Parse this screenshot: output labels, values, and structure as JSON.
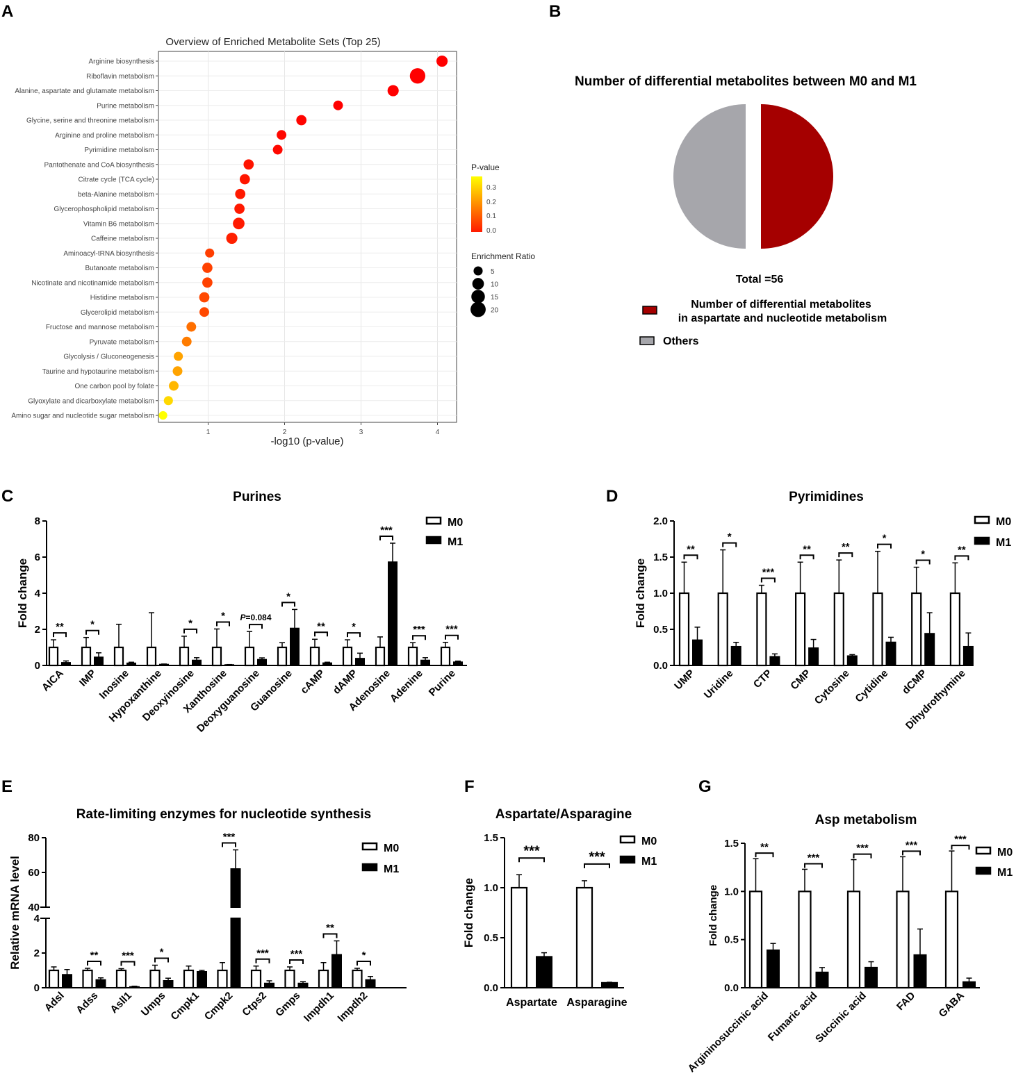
{
  "panel_labels": {
    "a": "A",
    "b": "B",
    "c": "C",
    "d": "D",
    "e": "E",
    "f": "F",
    "g": "G"
  },
  "chart_data": [
    {
      "id": "A",
      "type": "scatter",
      "title": "Overview of Enriched Metabolite Sets (Top 25)",
      "xlabel": "-log10 (p-value)",
      "xlim": [
        0.35,
        4.25
      ],
      "xticks": [
        1,
        2,
        3,
        4
      ],
      "grid": true,
      "categories": [
        "Arginine biosynthesis",
        "Riboflavin metabolism",
        "Alanine, aspartate and glutamate metabolism",
        "Purine metabolism",
        "Glycine, serine and threonine metabolism",
        "Arginine and proline metabolism",
        "Pyrimidine metabolism",
        "Pantothenate and CoA biosynthesis",
        "Citrate cycle (TCA cycle)",
        "beta-Alanine metabolism",
        "Glycerophospholipid metabolism",
        "Vitamin B6 metabolism",
        "Caffeine metabolism",
        "Aminoacyl-tRNA biosynthesis",
        "Butanoate metabolism",
        "Nicotinate and nicotinamide metabolism",
        "Histidine metabolism",
        "Glycerolipid metabolism",
        "Fructose and mannose metabolism",
        "Pyruvate metabolism",
        "Glycolysis / Gluconeogenesis",
        "Taurine and hypotaurine metabolism",
        "One carbon pool by folate",
        "Glyoxylate and dicarboxylate metabolism",
        "Amino sugar and nucleotide sugar metabolism"
      ],
      "x": [
        4.06,
        3.74,
        3.42,
        2.7,
        2.22,
        1.96,
        1.91,
        1.53,
        1.48,
        1.42,
        1.41,
        1.4,
        1.31,
        1.02,
        0.99,
        0.99,
        0.95,
        0.95,
        0.78,
        0.72,
        0.61,
        0.6,
        0.55,
        0.48,
        0.41
      ],
      "p_value": [
        0.0001,
        0.0002,
        0.0004,
        0.002,
        0.006,
        0.011,
        0.012,
        0.03,
        0.033,
        0.038,
        0.039,
        0.04,
        0.049,
        0.095,
        0.1,
        0.1,
        0.11,
        0.11,
        0.17,
        0.19,
        0.25,
        0.25,
        0.28,
        0.33,
        0.39
      ],
      "enrichment_ratio": [
        9,
        21,
        9,
        6,
        7,
        6,
        6,
        7,
        7,
        7,
        7,
        10,
        9,
        5,
        7,
        7,
        7,
        6,
        6,
        6,
        5,
        6,
        6,
        5,
        4
      ],
      "legend": {
        "color_title": "P-value",
        "color_ticks": [
          "0.3",
          "0.2",
          "0.1",
          "0.0"
        ],
        "size_title": "Enrichment Ratio",
        "size_ticks": [
          "5",
          "10",
          "15",
          "20"
        ]
      },
      "colors": {
        "low": "#ff0000",
        "mid": "#ff8c00",
        "high": "#ffff00"
      }
    },
    {
      "id": "B",
      "type": "pie",
      "title": "Number of differential metabolites between M0 and M1",
      "total_label": "Total =56",
      "slices": [
        {
          "name": "Number of differential metabolites in aspartate and  nucleotide metabolism",
          "legend_line1": "Number of differential metabolites",
          "legend_line2": "in aspartate and  nucleotide metabolism",
          "value": 28,
          "color": "#a50000"
        },
        {
          "name": "Others",
          "value": 28,
          "color": "#a6a6ab"
        }
      ]
    },
    {
      "id": "C",
      "type": "bar",
      "title": "Purines",
      "ylabel": "Fold change",
      "ylim": [
        0,
        8
      ],
      "yticks": [
        0,
        2,
        4,
        6,
        8
      ],
      "categories": [
        "AICA",
        "IMP",
        "Inosine",
        "Hypoxanthine",
        "Deoxyinosine",
        "Xanthosine",
        "Deoxyguanosine",
        "Guanosine",
        "cAMP",
        "dAMP",
        "Adenosine",
        "Adenine",
        "Purine"
      ],
      "series": [
        {
          "name": "M0",
          "values": [
            1,
            1,
            1,
            1,
            1,
            1,
            1,
            1,
            1,
            1,
            1,
            1,
            1
          ],
          "errors": [
            0.42,
            0.55,
            1.28,
            1.92,
            0.62,
            1.02,
            0.88,
            0.26,
            0.45,
            0.42,
            0.58,
            0.26,
            0.28
          ]
        },
        {
          "name": "M1",
          "values": [
            0.15,
            0.45,
            0.12,
            0.05,
            0.28,
            0.03,
            0.32,
            2.05,
            0.13,
            0.38,
            5.72,
            0.28,
            0.18
          ],
          "errors": [
            0.1,
            0.25,
            0.06,
            0.03,
            0.15,
            0.02,
            0.1,
            1.05,
            0.05,
            0.3,
            1.05,
            0.15,
            0.06
          ]
        }
      ],
      "significance": [
        "**",
        "*",
        "",
        "",
        "*",
        "*",
        "P=0.084",
        "*",
        "**",
        "*",
        "***",
        "***",
        "***"
      ]
    },
    {
      "id": "D",
      "type": "bar",
      "title": "Pyrimidines",
      "ylabel": "Fold change",
      "ylim": [
        0,
        2.0
      ],
      "yticks": [
        "0.0",
        "0.5",
        "1.0",
        "1.5",
        "2.0"
      ],
      "categories": [
        "UMP",
        "Uridine",
        "CTP",
        "CMP",
        "Cytosine",
        "Cytidine",
        "dCMP",
        "Dihydrothymine"
      ],
      "series": [
        {
          "name": "M0",
          "values": [
            1,
            1,
            1,
            1,
            1,
            1,
            1,
            1
          ],
          "errors": [
            0.43,
            0.6,
            0.11,
            0.43,
            0.46,
            0.58,
            0.36,
            0.42
          ]
        },
        {
          "name": "M1",
          "values": [
            0.35,
            0.26,
            0.12,
            0.24,
            0.13,
            0.32,
            0.44,
            0.26
          ],
          "errors": [
            0.18,
            0.06,
            0.04,
            0.12,
            0.02,
            0.07,
            0.29,
            0.19
          ]
        }
      ],
      "significance": [
        "**",
        "*",
        "***",
        "**",
        "**",
        "*",
        "*",
        "**"
      ]
    },
    {
      "id": "E",
      "type": "bar",
      "title": "Rate-limiting enzymes for nucleotide synthesis",
      "ylabel": "Relative mRNA level",
      "ylim_lower": [
        0,
        4
      ],
      "ylim_upper": [
        40,
        80
      ],
      "yticks": [
        0,
        2,
        4,
        40,
        60,
        80
      ],
      "categories": [
        "Adsl",
        "Adss",
        "Asll1",
        "Umps",
        "Cmpk1",
        "Cmpk2",
        "Ctps2",
        "Gmps",
        "Impdh1",
        "Impdh2"
      ],
      "series": [
        {
          "name": "M0",
          "values": [
            1,
            1,
            1,
            1,
            1,
            1,
            1,
            1,
            1,
            1
          ],
          "errors": [
            0.2,
            0.12,
            0.1,
            0.3,
            0.25,
            0.45,
            0.25,
            0.2,
            0.45,
            0.12
          ]
        },
        {
          "name": "M1",
          "values": [
            0.75,
            0.45,
            0.05,
            0.4,
            0.92,
            62,
            0.25,
            0.25,
            1.9,
            0.45
          ],
          "errors": [
            0.3,
            0.12,
            0.04,
            0.15,
            0.08,
            11,
            0.15,
            0.1,
            0.8,
            0.2
          ]
        }
      ],
      "significance": [
        "",
        "**",
        "***",
        "*",
        "",
        "***",
        "***",
        "***",
        "**",
        "*"
      ]
    },
    {
      "id": "F",
      "type": "bar",
      "title": "Aspartate/Asparagine",
      "ylabel": "Fold change",
      "ylim": [
        0,
        1.5
      ],
      "yticks": [
        "0.0",
        "0.5",
        "1.0",
        "1.5"
      ],
      "categories": [
        "Aspartate",
        "Asparagine"
      ],
      "series": [
        {
          "name": "M0",
          "values": [
            1,
            1
          ],
          "errors": [
            0.13,
            0.07
          ]
        },
        {
          "name": "M1",
          "values": [
            0.31,
            0.05
          ],
          "errors": [
            0.04,
            0.005
          ]
        }
      ],
      "significance": [
        "***",
        "***"
      ]
    },
    {
      "id": "G",
      "type": "bar",
      "title": "Asp metabolism",
      "ylabel": "Fold change",
      "ylim": [
        0,
        1.5
      ],
      "yticks": [
        "0.0",
        "0.5",
        "1.0",
        "1.5"
      ],
      "categories": [
        "Argininosuccinic acid",
        "Fumaric acid",
        "Succinic acid",
        "FAD",
        "GABA"
      ],
      "series": [
        {
          "name": "M0",
          "values": [
            1,
            1,
            1,
            1,
            1
          ],
          "errors": [
            0.34,
            0.23,
            0.33,
            0.36,
            0.42
          ]
        },
        {
          "name": "M1",
          "values": [
            0.39,
            0.16,
            0.21,
            0.34,
            0.06
          ],
          "errors": [
            0.07,
            0.05,
            0.06,
            0.27,
            0.04
          ]
        }
      ],
      "significance": [
        "**",
        "***",
        "***",
        "***",
        "***"
      ]
    }
  ]
}
